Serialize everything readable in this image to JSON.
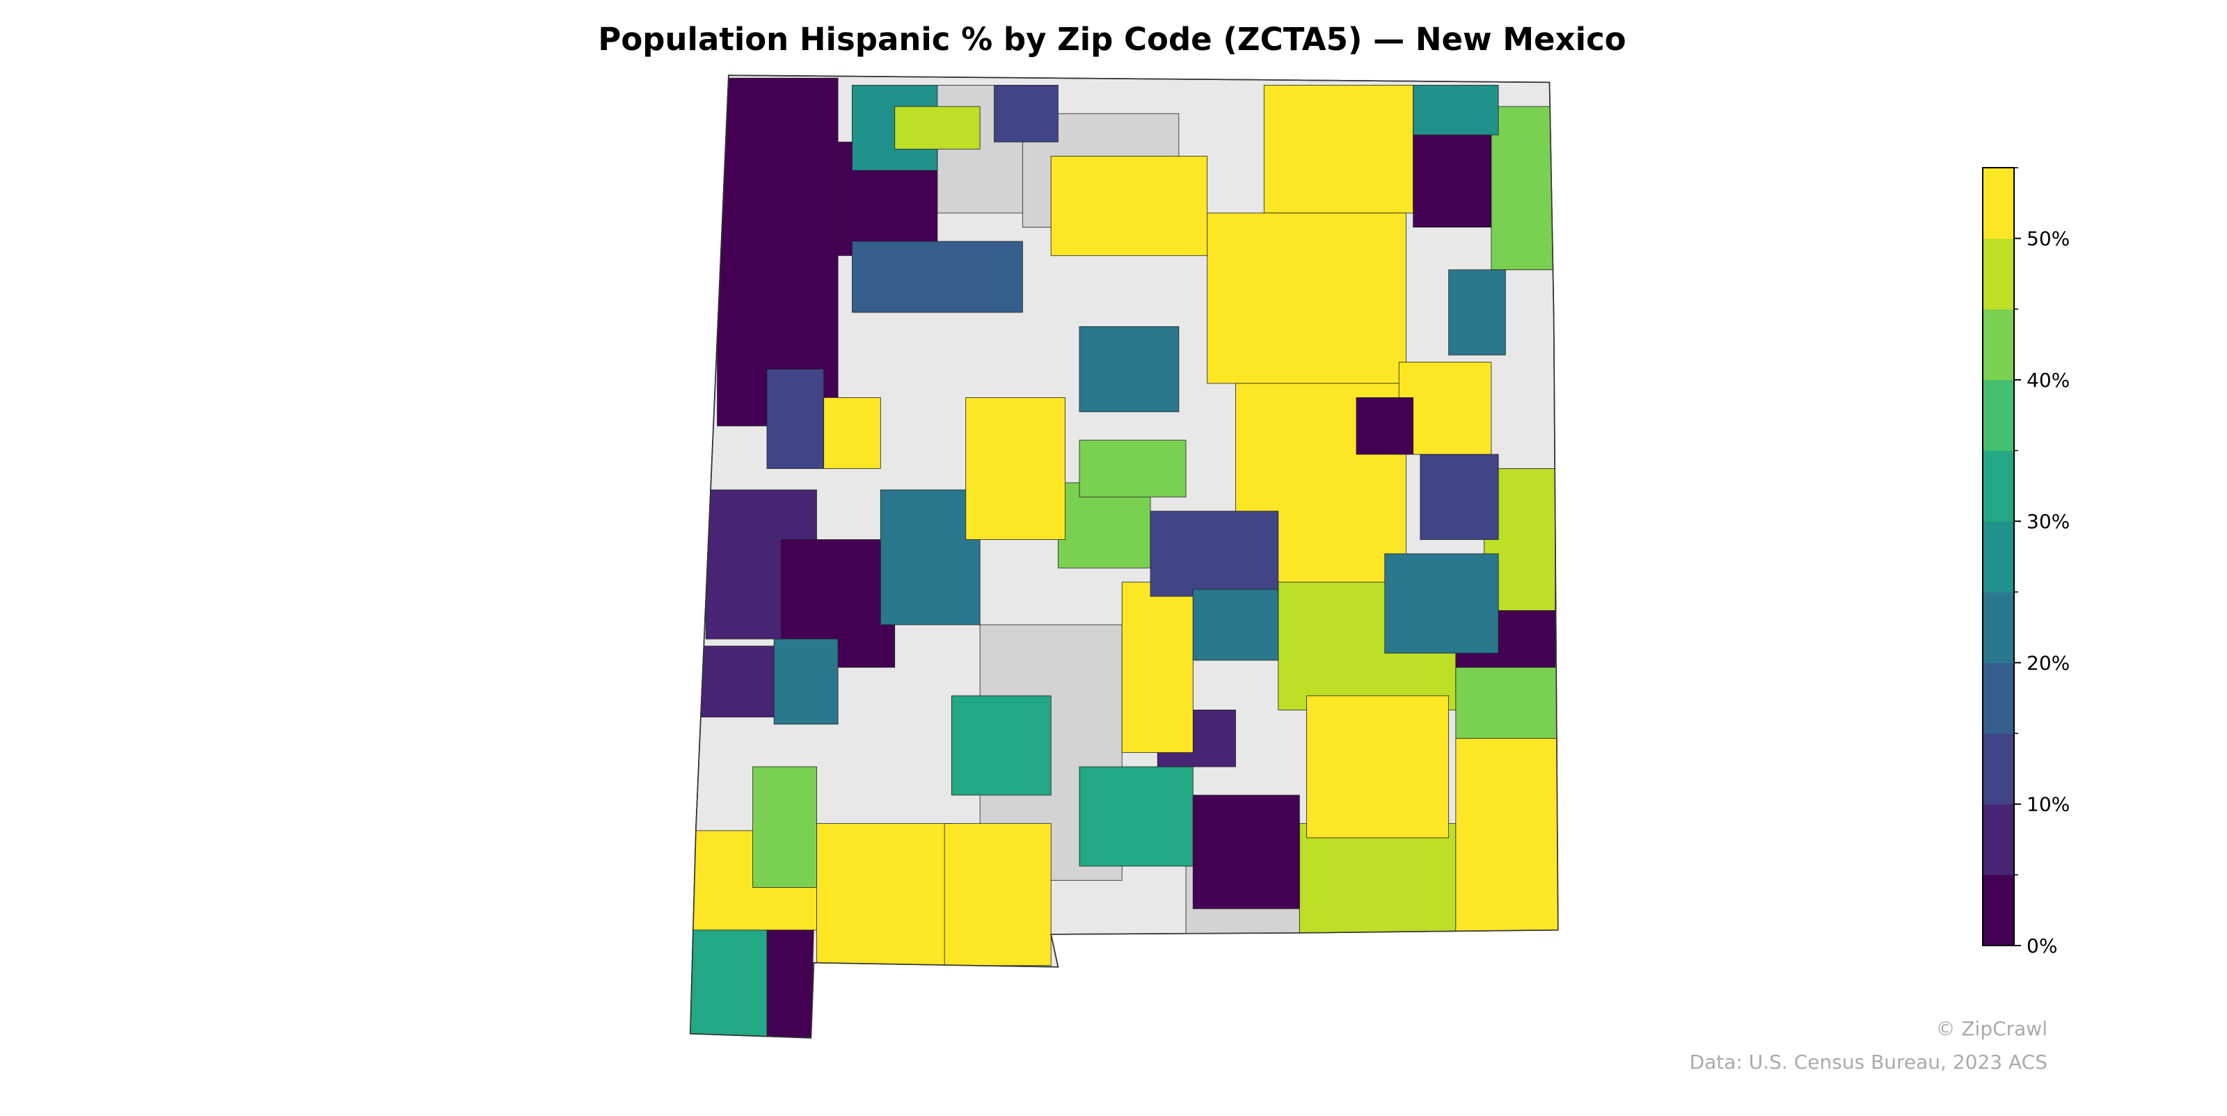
{
  "map": {
    "title": "Population Hispanic % by Zip Code (ZCTA5) — New Mexico",
    "colorbar": {
      "lim": [
        0,
        55
      ],
      "ticks": [
        {
          "value": 0,
          "label": "0%"
        },
        {
          "value": 10,
          "label": "10%"
        },
        {
          "value": 20,
          "label": "20%"
        },
        {
          "value": 30,
          "label": "30%"
        },
        {
          "value": 40,
          "label": "40%"
        },
        {
          "value": 50,
          "label": "50%"
        }
      ],
      "minor_ticks": [
        5,
        15,
        25,
        35,
        45,
        55
      ],
      "colors": [
        "#440154",
        "#482475",
        "#414487",
        "#355f8d",
        "#2a788e",
        "#21918c",
        "#22a884",
        "#44bf70",
        "#7ad151",
        "#bddf26",
        "#fde725"
      ]
    },
    "credit": "© ZipCrawl",
    "source": "Data: U.S. Census Bureau, 2023 ACS"
  }
}
